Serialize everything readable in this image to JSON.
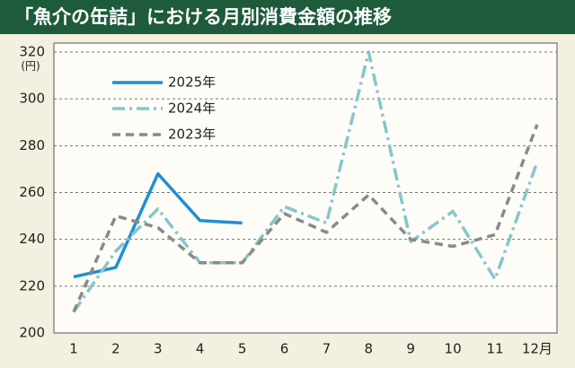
{
  "chart_data": {
    "type": "line",
    "title": "「魚介の缶詰」における月別消費金額の推移",
    "y_unit": "(円)",
    "categories": [
      "1",
      "2",
      "3",
      "4",
      "5",
      "6",
      "7",
      "8",
      "9",
      "10",
      "11",
      "12月"
    ],
    "series": [
      {
        "name": "2025年",
        "color": "#1f8fd3",
        "dash": "solid",
        "values": [
          224,
          228,
          268,
          248,
          247,
          null,
          null,
          null,
          null,
          null,
          null,
          null
        ]
      },
      {
        "name": "2024年",
        "color": "#86c6cc",
        "dash": "dashdot",
        "values": [
          209,
          235,
          253,
          230,
          230,
          254,
          247,
          320,
          239,
          252,
          223,
          273
        ]
      },
      {
        "name": "2023年",
        "color": "#8a8a8a",
        "dash": "dashed",
        "values": [
          209,
          250,
          245,
          230,
          230,
          251,
          243,
          259,
          240,
          237,
          242,
          289
        ]
      }
    ],
    "ylim": [
      200,
      320
    ],
    "yticks": [
      200,
      220,
      240,
      260,
      280,
      300,
      320
    ],
    "grid": true,
    "legend": "top-left"
  }
}
